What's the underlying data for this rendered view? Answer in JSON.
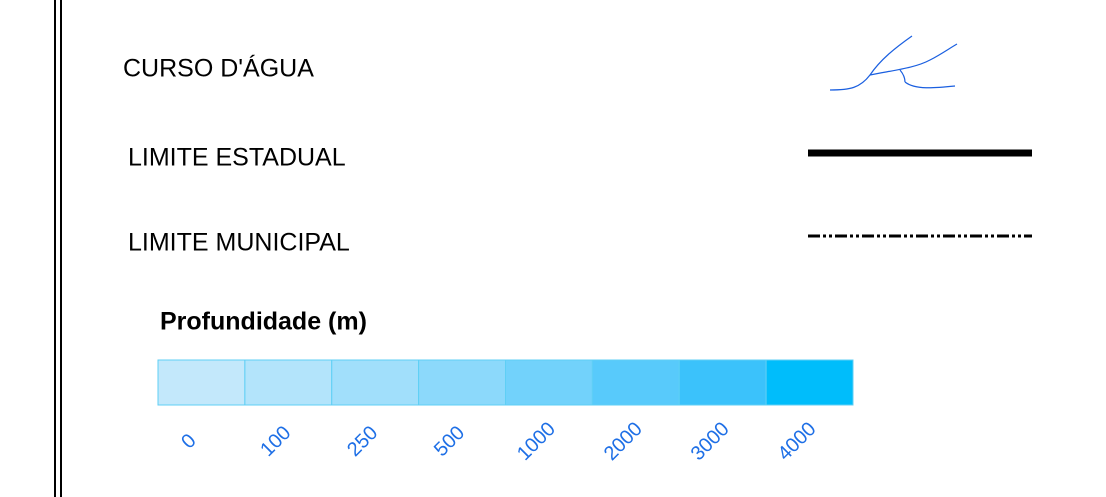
{
  "legend": {
    "items": [
      {
        "label": "CURSO D'ÁGUA",
        "symbol": "stream"
      },
      {
        "label": "LIMITE ESTADUAL",
        "symbol": "solid-line"
      },
      {
        "label": "LIMITE MUNICIPAL",
        "symbol": "dash-dot-line"
      }
    ],
    "depth_scale": {
      "title": "Profundidade (m)",
      "classes": [
        0,
        100,
        250,
        500,
        1000,
        2000,
        3000,
        4000
      ],
      "colors": [
        "#c3e8fb",
        "#b3e4fb",
        "#a1dffb",
        "#8cd9fb",
        "#72d2fb",
        "#58cafb",
        "#3bc2fb",
        "#00bdfb"
      ]
    }
  }
}
